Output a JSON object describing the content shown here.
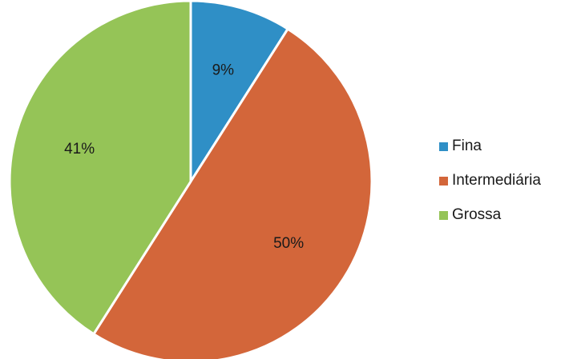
{
  "chart_data": {
    "type": "pie",
    "title": "",
    "slices": [
      {
        "name": "Fina",
        "value": 9,
        "label": "9%",
        "color": "#2f8fc6"
      },
      {
        "name": "Intermediária",
        "value": 50,
        "label": "50%",
        "color": "#d3663a"
      },
      {
        "name": "Grossa",
        "value": 41,
        "label": "41%",
        "color": "#95c457"
      }
    ],
    "start_angle_deg": 0,
    "direction": "clockwise",
    "legend": {
      "placement": "right",
      "entries": [
        "Fina",
        "Intermediária",
        "Grossa"
      ]
    }
  }
}
